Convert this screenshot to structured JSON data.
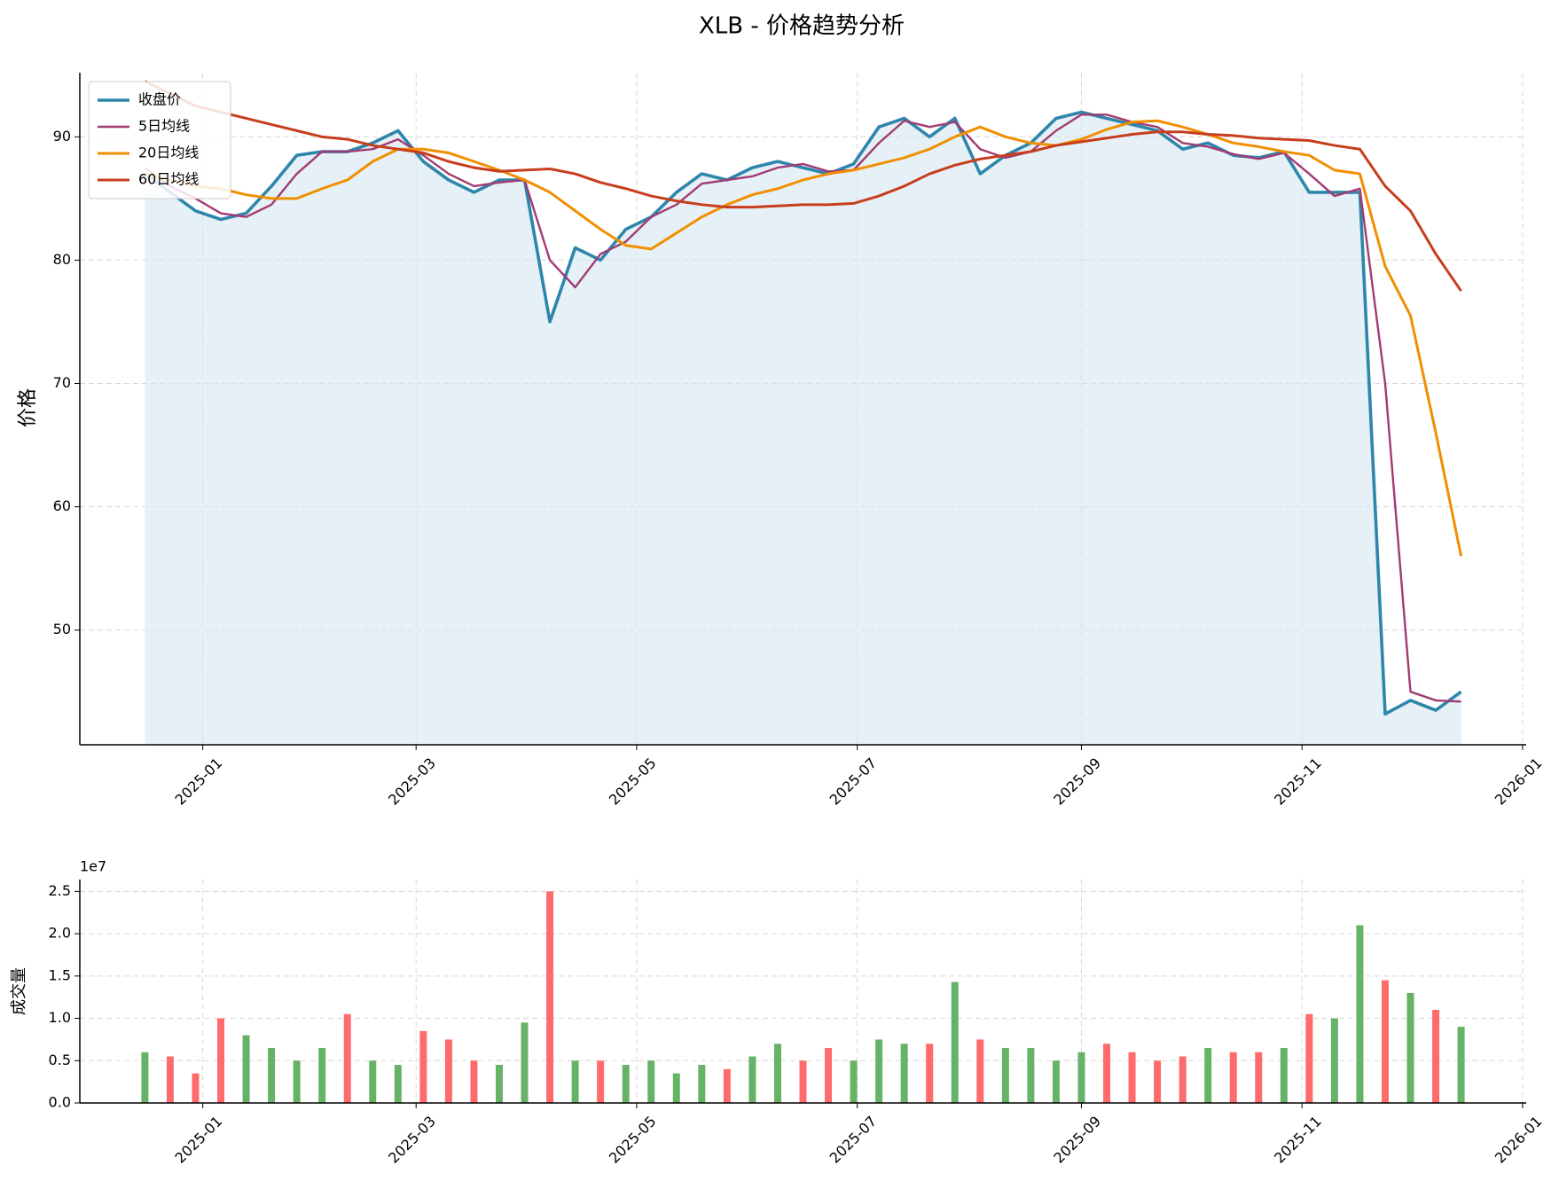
{
  "chart_data": [
    {
      "type": "line",
      "title": "XLB - 价格趋势分析",
      "ylabel": "价格",
      "x": [
        "2024-12-16",
        "2024-12-23",
        "2024-12-30",
        "2025-01-06",
        "2025-01-13",
        "2025-01-20",
        "2025-01-27",
        "2025-02-03",
        "2025-02-10",
        "2025-02-17",
        "2025-02-24",
        "2025-03-03",
        "2025-03-10",
        "2025-03-17",
        "2025-03-24",
        "2025-03-31",
        "2025-04-07",
        "2025-04-14",
        "2025-04-21",
        "2025-04-28",
        "2025-05-05",
        "2025-05-12",
        "2025-05-19",
        "2025-05-26",
        "2025-06-02",
        "2025-06-09",
        "2025-06-16",
        "2025-06-23",
        "2025-06-30",
        "2025-07-07",
        "2025-07-14",
        "2025-07-21",
        "2025-07-28",
        "2025-08-04",
        "2025-08-11",
        "2025-08-18",
        "2025-08-25",
        "2025-09-01",
        "2025-09-08",
        "2025-09-15",
        "2025-09-22",
        "2025-09-29",
        "2025-10-06",
        "2025-10-13",
        "2025-10-20",
        "2025-10-27",
        "2025-11-03",
        "2025-11-10",
        "2025-11-17",
        "2025-11-24",
        "2025-12-01",
        "2025-12-08",
        "2025-12-15"
      ],
      "series": [
        {
          "name": "收盘价",
          "color": "#2e86ab",
          "linewidth": 3.6,
          "fill": "#d6e7f2",
          "values": [
            87,
            85.5,
            84,
            83.3,
            83.8,
            86,
            88.5,
            88.8,
            88.8,
            89.5,
            90.5,
            88,
            86.5,
            85.5,
            86.5,
            86.5,
            75,
            81,
            80,
            82.5,
            83.5,
            85.5,
            87,
            86.5,
            87.5,
            88,
            87.5,
            87,
            87.8,
            90.8,
            91.5,
            90,
            91.5,
            87,
            88.5,
            89.5,
            91.5,
            92,
            91.5,
            91,
            90.5,
            89,
            89.5,
            88.5,
            88.3,
            88.8,
            85.5,
            85.5,
            85.5,
            43.2,
            44.3,
            43.5,
            45
          ]
        },
        {
          "name": "5日均线",
          "color": "#a23b72",
          "linewidth": 2.4,
          "values": [
            87.5,
            86,
            85,
            83.8,
            83.5,
            84.5,
            87,
            88.8,
            88.8,
            89,
            89.8,
            88.5,
            87,
            86,
            86.3,
            86.5,
            80,
            77.8,
            80.5,
            81.5,
            83.5,
            84.5,
            86.2,
            86.5,
            86.8,
            87.5,
            87.8,
            87.2,
            87.3,
            89.5,
            91.3,
            90.8,
            91.2,
            89,
            88.3,
            88.8,
            90.5,
            91.8,
            91.8,
            91.2,
            90.8,
            89.5,
            89.2,
            88.6,
            88.2,
            88.7,
            87,
            85.2,
            85.8,
            70,
            45,
            44.3,
            44.2
          ]
        },
        {
          "name": "20日均线",
          "color": "#f18f01",
          "linewidth": 3,
          "values": [
            87,
            86.5,
            86,
            85.8,
            85.3,
            85,
            85,
            85.8,
            86.5,
            88,
            89,
            89,
            88.7,
            88,
            87.3,
            86.5,
            85.5,
            84,
            82.5,
            81.2,
            80.9,
            82.2,
            83.5,
            84.5,
            85.3,
            85.8,
            86.5,
            87,
            87.3,
            87.8,
            88.3,
            89,
            90,
            90.8,
            90,
            89.5,
            89.3,
            89.8,
            90.6,
            91.2,
            91.3,
            90.8,
            90.2,
            89.5,
            89.2,
            88.8,
            88.5,
            87.3,
            87,
            79.5,
            75.5,
            66,
            56
          ]
        },
        {
          "name": "60日均线",
          "color": "#c73e1d",
          "linewidth": 3,
          "values": [
            94.5,
            93.5,
            92.5,
            92,
            91.5,
            91,
            90.5,
            90,
            89.8,
            89.3,
            89,
            88.7,
            88,
            87.5,
            87.2,
            87.3,
            87.4,
            87,
            86.3,
            85.8,
            85.2,
            84.8,
            84.5,
            84.3,
            84.3,
            84.4,
            84.5,
            84.5,
            84.6,
            85.2,
            86,
            87,
            87.7,
            88.2,
            88.5,
            88.8,
            89.3,
            89.6,
            89.9,
            90.2,
            90.4,
            90.4,
            90.2,
            90.1,
            89.9,
            89.8,
            89.7,
            89.3,
            89,
            86,
            84,
            80.5,
            77.5
          ]
        }
      ],
      "xlim": [
        "2024-11-28",
        "2026-01-02"
      ],
      "ylim": [
        40.7,
        95.2
      ],
      "xticks": [
        {
          "value": "2025-01-01",
          "label": "2025-01"
        },
        {
          "value": "2025-03-01",
          "label": "2025-03"
        },
        {
          "value": "2025-05-01",
          "label": "2025-05"
        },
        {
          "value": "2025-07-01",
          "label": "2025-07"
        },
        {
          "value": "2025-09-01",
          "label": "2025-09"
        },
        {
          "value": "2025-11-01",
          "label": "2025-11"
        },
        {
          "value": "2026-01-01",
          "label": "2026-01"
        }
      ],
      "yticks": [
        50,
        60,
        70,
        80,
        90
      ],
      "grid": true,
      "legend": "upper left"
    },
    {
      "type": "bar",
      "ylabel": "成交量",
      "offset_label": "1e7",
      "x": [
        "2024-12-16",
        "2024-12-23",
        "2024-12-30",
        "2025-01-06",
        "2025-01-13",
        "2025-01-20",
        "2025-01-27",
        "2025-02-03",
        "2025-02-10",
        "2025-02-17",
        "2025-02-24",
        "2025-03-03",
        "2025-03-10",
        "2025-03-17",
        "2025-03-24",
        "2025-03-31",
        "2025-04-07",
        "2025-04-14",
        "2025-04-21",
        "2025-04-28",
        "2025-05-05",
        "2025-05-12",
        "2025-05-19",
        "2025-05-26",
        "2025-06-02",
        "2025-06-09",
        "2025-06-16",
        "2025-06-23",
        "2025-06-30",
        "2025-07-07",
        "2025-07-14",
        "2025-07-21",
        "2025-07-28",
        "2025-08-04",
        "2025-08-11",
        "2025-08-18",
        "2025-08-25",
        "2025-09-01",
        "2025-09-08",
        "2025-09-15",
        "2025-09-22",
        "2025-09-29",
        "2025-10-06",
        "2025-10-13",
        "2025-10-20",
        "2025-10-27",
        "2025-11-03",
        "2025-11-10",
        "2025-11-17",
        "2025-11-24",
        "2025-12-01",
        "2025-12-08",
        "2025-12-15"
      ],
      "values": [
        6000000,
        5500000,
        3500000,
        10000000,
        8000000,
        6500000,
        5000000,
        6500000,
        10500000,
        5000000,
        4500000,
        8500000,
        7500000,
        5000000,
        4500000,
        9500000,
        25000000,
        5000000,
        5000000,
        4500000,
        5000000,
        3500000,
        4500000,
        4000000,
        5500000,
        7000000,
        5000000,
        6500000,
        5000000,
        7500000,
        7000000,
        7000000,
        14300000,
        7500000,
        6500000,
        6500000,
        5000000,
        6000000,
        7000000,
        6000000,
        5000000,
        5500000,
        6500000,
        6000000,
        6000000,
        6500000,
        10500000,
        10000000,
        21000000,
        14500000,
        13000000,
        11000000,
        9000000
      ],
      "colors": [
        "#66b266",
        "#ff6b6b",
        "#ff6b6b",
        "#ff6b6b",
        "#66b266",
        "#66b266",
        "#66b266",
        "#66b266",
        "#ff6b6b",
        "#66b266",
        "#66b266",
        "#ff6b6b",
        "#ff6b6b",
        "#ff6b6b",
        "#66b266",
        "#66b266",
        "#ff6b6b",
        "#66b266",
        "#ff6b6b",
        "#66b266",
        "#66b266",
        "#66b266",
        "#66b266",
        "#ff6b6b",
        "#66b266",
        "#66b266",
        "#ff6b6b",
        "#ff6b6b",
        "#66b266",
        "#66b266",
        "#66b266",
        "#ff6b6b",
        "#66b266",
        "#ff6b6b",
        "#66b266",
        "#66b266",
        "#66b266",
        "#66b266",
        "#ff6b6b",
        "#ff6b6b",
        "#ff6b6b",
        "#ff6b6b",
        "#66b266",
        "#ff6b6b",
        "#ff6b6b",
        "#66b266",
        "#ff6b6b",
        "#66b266",
        "#66b266",
        "#ff6b6b",
        "#66b266",
        "#ff6b6b",
        "#66b266"
      ],
      "xlim": [
        "2024-11-28",
        "2026-01-02"
      ],
      "ylim": [
        0,
        26400000
      ],
      "xticks": [
        {
          "value": "2025-01-01",
          "label": "2025-01"
        },
        {
          "value": "2025-03-01",
          "label": "2025-03"
        },
        {
          "value": "2025-05-01",
          "label": "2025-05"
        },
        {
          "value": "2025-07-01",
          "label": "2025-07"
        },
        {
          "value": "2025-09-01",
          "label": "2025-09"
        },
        {
          "value": "2025-11-01",
          "label": "2025-11"
        },
        {
          "value": "2026-01-01",
          "label": "2026-01"
        }
      ],
      "yticks": [
        {
          "value": 0,
          "label": "0.0"
        },
        {
          "value": 5000000,
          "label": "0.5"
        },
        {
          "value": 10000000,
          "label": "1.0"
        },
        {
          "value": 15000000,
          "label": "1.5"
        },
        {
          "value": 20000000,
          "label": "2.0"
        },
        {
          "value": 25000000,
          "label": "2.5"
        }
      ],
      "grid": true
    }
  ]
}
